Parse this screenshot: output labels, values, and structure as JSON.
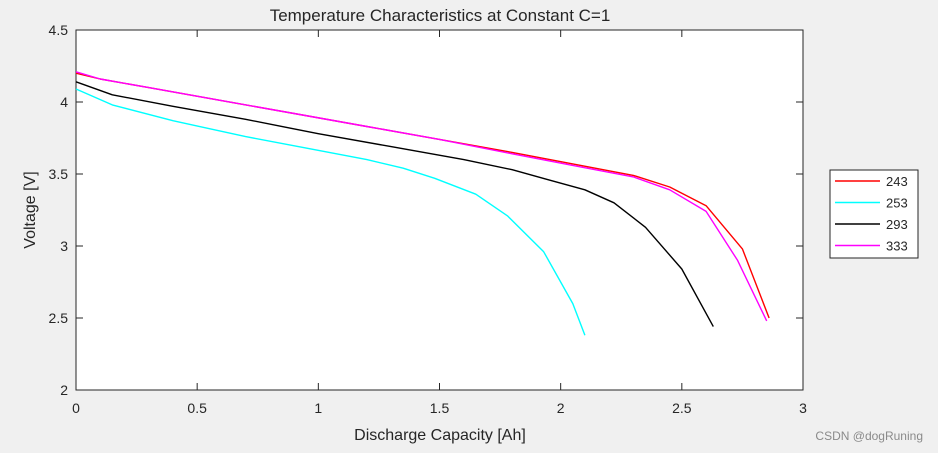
{
  "chart_data": {
    "type": "line",
    "title": "Temperature Characteristics at Constant C=1",
    "xlabel": "Discharge Capacity [Ah]",
    "ylabel": "Voltage [V]",
    "xlim": [
      0,
      3
    ],
    "ylim": [
      2,
      4.5
    ],
    "xticks": [
      0,
      0.5,
      1,
      1.5,
      2,
      2.5,
      3
    ],
    "yticks": [
      2,
      2.5,
      3,
      3.5,
      4,
      4.5
    ],
    "xtick_labels": [
      "0",
      "0.5",
      "1",
      "1.5",
      "2",
      "2.5",
      "3"
    ],
    "ytick_labels": [
      "2",
      "2.5",
      "3",
      "3.5",
      "4",
      "4.5"
    ],
    "grid": false,
    "legend_position": "outside-right",
    "series": [
      {
        "name": "243",
        "color": "#ff0000",
        "x": [
          0,
          0.1,
          0.3,
          0.6,
          0.9,
          1.2,
          1.5,
          1.8,
          2.05,
          2.3,
          2.45,
          2.6,
          2.75,
          2.86
        ],
        "y": [
          4.2,
          4.16,
          4.1,
          4.01,
          3.92,
          3.83,
          3.74,
          3.65,
          3.57,
          3.49,
          3.41,
          3.28,
          2.98,
          2.5
        ]
      },
      {
        "name": "253",
        "color": "#00ffff",
        "x": [
          0,
          0.15,
          0.4,
          0.7,
          0.95,
          1.2,
          1.35,
          1.48,
          1.65,
          1.78,
          1.93,
          2.05,
          2.1
        ],
        "y": [
          4.09,
          3.98,
          3.87,
          3.76,
          3.68,
          3.6,
          3.54,
          3.47,
          3.36,
          3.21,
          2.96,
          2.6,
          2.38
        ]
      },
      {
        "name": "293",
        "color": "#000000",
        "x": [
          0,
          0.15,
          0.4,
          0.7,
          1.0,
          1.3,
          1.6,
          1.8,
          1.95,
          2.1,
          2.22,
          2.35,
          2.5,
          2.63
        ],
        "y": [
          4.14,
          4.05,
          3.97,
          3.88,
          3.78,
          3.69,
          3.6,
          3.53,
          3.46,
          3.39,
          3.3,
          3.13,
          2.84,
          2.44
        ]
      },
      {
        "name": "333",
        "color": "#ff00ff",
        "x": [
          0,
          0.1,
          0.3,
          0.6,
          0.9,
          1.2,
          1.5,
          1.8,
          2.05,
          2.3,
          2.45,
          2.6,
          2.73,
          2.85
        ],
        "y": [
          4.21,
          4.16,
          4.1,
          4.01,
          3.92,
          3.83,
          3.74,
          3.64,
          3.56,
          3.48,
          3.39,
          3.24,
          2.9,
          2.48
        ]
      }
    ]
  },
  "watermark": "CSDN @dogRuning"
}
